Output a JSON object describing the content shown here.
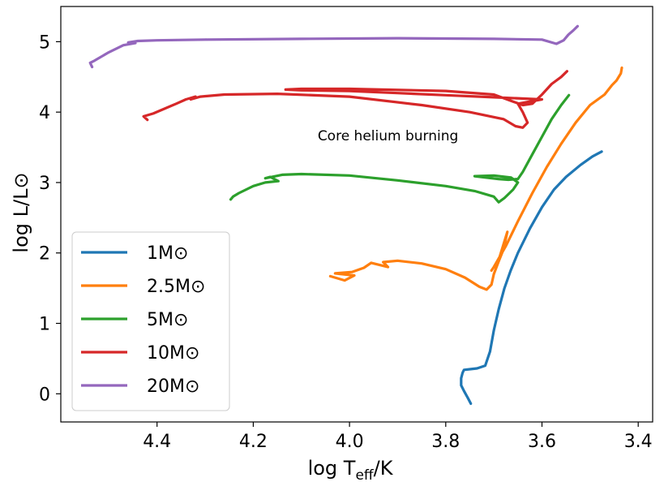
{
  "chart_data": {
    "type": "line",
    "xlabel": {
      "base": "log T",
      "sub": "eff",
      "tail": "/K"
    },
    "ylabel": "log L/L⊙",
    "xlim": [
      4.6,
      3.37
    ],
    "ylim": [
      -0.4,
      5.5
    ],
    "x_inverted": true,
    "xticks": [
      4.4,
      4.2,
      4.0,
      3.8,
      3.6,
      3.4
    ],
    "xtick_labels": [
      "4.4",
      "4.2",
      "4.0",
      "3.8",
      "3.6",
      "3.4"
    ],
    "yticks": [
      0,
      1,
      2,
      3,
      4,
      5
    ],
    "ytick_labels": [
      "0",
      "1",
      "2",
      "3",
      "4",
      "5"
    ],
    "grid": false,
    "legend_position": "lower-left",
    "annotations": [
      {
        "text": "Core helium burning",
        "x": 3.92,
        "y": 3.6
      }
    ],
    "series": [
      {
        "name": "1M⊙",
        "color": "#1f77b4",
        "x": [
          3.748,
          3.754,
          3.762,
          3.768,
          3.768,
          3.765,
          3.762,
          3.748,
          3.735,
          3.718,
          3.708,
          3.7,
          3.69,
          3.678,
          3.665,
          3.65,
          3.625,
          3.6,
          3.575,
          3.55,
          3.52,
          3.495,
          3.476
        ],
        "y": [
          -0.14,
          -0.06,
          0.04,
          0.12,
          0.22,
          0.3,
          0.34,
          0.35,
          0.36,
          0.4,
          0.6,
          0.9,
          1.2,
          1.5,
          1.75,
          2.0,
          2.35,
          2.65,
          2.9,
          3.08,
          3.25,
          3.37,
          3.44
        ]
      },
      {
        "name": "2.5M⊙",
        "color": "#ff7f0e",
        "x": [
          4.04,
          4.01,
          3.99,
          4.03,
          3.995,
          3.97,
          3.955,
          3.92,
          3.93,
          3.9,
          3.85,
          3.8,
          3.76,
          3.73,
          3.715,
          3.705,
          3.7,
          3.69,
          3.68,
          3.672,
          3.69,
          3.705,
          3.7,
          3.675,
          3.65,
          3.62,
          3.59,
          3.56,
          3.53,
          3.5,
          3.47,
          3.455,
          3.445,
          3.436,
          3.434
        ],
        "y": [
          1.67,
          1.61,
          1.68,
          1.71,
          1.73,
          1.79,
          1.86,
          1.8,
          1.87,
          1.89,
          1.85,
          1.77,
          1.65,
          1.52,
          1.48,
          1.55,
          1.7,
          1.88,
          2.05,
          2.3,
          1.9,
          1.75,
          1.8,
          2.1,
          2.45,
          2.85,
          3.22,
          3.55,
          3.85,
          4.1,
          4.25,
          4.38,
          4.45,
          4.55,
          4.63
        ]
      },
      {
        "name": "5M⊙",
        "color": "#2ca02c",
        "x": [
          4.247,
          4.242,
          4.23,
          4.2,
          4.175,
          4.148,
          4.165,
          4.175,
          4.14,
          4.1,
          4.0,
          3.9,
          3.8,
          3.74,
          3.7,
          3.69,
          3.678,
          3.66,
          3.65,
          3.664,
          3.7,
          3.74,
          3.69,
          3.67,
          3.65,
          3.64,
          3.62,
          3.6,
          3.58,
          3.56,
          3.544
        ],
        "y": [
          2.76,
          2.8,
          2.85,
          2.95,
          3.0,
          3.02,
          3.08,
          3.06,
          3.11,
          3.12,
          3.1,
          3.03,
          2.95,
          2.88,
          2.8,
          2.72,
          2.78,
          2.9,
          3.0,
          3.07,
          3.1,
          3.09,
          3.05,
          3.04,
          3.05,
          3.15,
          3.4,
          3.65,
          3.9,
          4.1,
          4.24
        ]
      },
      {
        "name": "10M⊙",
        "color": "#d62728",
        "x": [
          4.42,
          4.428,
          4.408,
          4.36,
          4.34,
          4.32,
          4.33,
          4.31,
          4.26,
          4.15,
          4.0,
          3.85,
          3.75,
          3.68,
          3.655,
          3.64,
          3.63,
          3.64,
          3.65,
          3.6,
          3.7,
          3.8,
          3.9,
          4.0,
          4.1,
          4.133,
          4.1,
          4.0,
          3.8,
          3.7,
          3.66,
          3.64,
          3.62,
          3.6,
          3.58,
          3.56,
          3.548
        ],
        "y": [
          3.89,
          3.94,
          3.98,
          4.12,
          4.18,
          4.22,
          4.18,
          4.22,
          4.25,
          4.26,
          4.22,
          4.1,
          4.0,
          3.9,
          3.8,
          3.78,
          3.85,
          4.0,
          4.12,
          4.18,
          4.21,
          4.24,
          4.27,
          4.3,
          4.31,
          4.32,
          4.33,
          4.33,
          4.3,
          4.25,
          4.15,
          4.1,
          4.12,
          4.25,
          4.4,
          4.5,
          4.58
        ]
      },
      {
        "name": "20M⊙",
        "color": "#9467bd",
        "x": [
          4.535,
          4.539,
          4.53,
          4.5,
          4.47,
          4.445,
          4.46,
          4.44,
          4.4,
          4.3,
          4.1,
          3.9,
          3.7,
          3.6,
          3.57,
          3.555,
          3.545,
          3.535,
          3.526
        ],
        "y": [
          4.64,
          4.7,
          4.73,
          4.85,
          4.95,
          4.98,
          4.99,
          5.01,
          5.02,
          5.03,
          5.04,
          5.05,
          5.04,
          5.03,
          4.97,
          5.02,
          5.1,
          5.16,
          5.22
        ]
      }
    ]
  }
}
